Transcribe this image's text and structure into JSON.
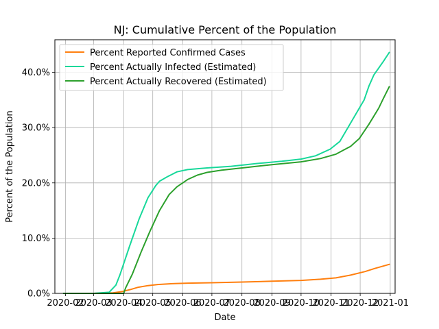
{
  "chart_data": {
    "type": "line",
    "title": "NJ: Cumulative Percent of the Population",
    "xlabel": "Date",
    "ylabel": "Percent of the Population",
    "x_axis_type": "date",
    "xlim": [
      "2020-01-21",
      "2021-01-06"
    ],
    "ylim": [
      0,
      45.9
    ],
    "x_ticks": [
      "2020-02-01",
      "2020-03-01",
      "2020-04-01",
      "2020-05-01",
      "2020-06-01",
      "2020-07-01",
      "2020-08-01",
      "2020-09-01",
      "2020-10-01",
      "2020-11-01",
      "2020-12-01",
      "2021-01-01"
    ],
    "x_tick_labels": [
      "2020-02",
      "2020-03",
      "2020-04",
      "2020-05",
      "2020-06",
      "2020-07",
      "2020-08",
      "2020-09",
      "2020-10",
      "2020-11",
      "2020-12",
      "2021-01"
    ],
    "y_ticks": [
      0,
      10,
      20,
      30,
      40
    ],
    "y_tick_labels": [
      "0.0%",
      "10.0%",
      "20.0%",
      "30.0%",
      "40.0%"
    ],
    "grid": true,
    "legend_position": "top-left",
    "series": [
      {
        "name": "Percent Reported Confirmed Cases",
        "color": "#ff7f0e",
        "points": [
          [
            "2020-01-30",
            0
          ],
          [
            "2020-03-01",
            0
          ],
          [
            "2020-03-21",
            0.1
          ],
          [
            "2020-03-31",
            0.35
          ],
          [
            "2020-04-08",
            0.7
          ],
          [
            "2020-04-16",
            1.1
          ],
          [
            "2020-04-26",
            1.4
          ],
          [
            "2020-05-06",
            1.6
          ],
          [
            "2020-05-21",
            1.75
          ],
          [
            "2020-06-06",
            1.85
          ],
          [
            "2020-07-01",
            1.92
          ],
          [
            "2020-08-01",
            2.05
          ],
          [
            "2020-09-01",
            2.2
          ],
          [
            "2020-10-01",
            2.35
          ],
          [
            "2020-10-21",
            2.55
          ],
          [
            "2020-11-06",
            2.8
          ],
          [
            "2020-11-21",
            3.3
          ],
          [
            "2020-12-06",
            3.95
          ],
          [
            "2020-12-16",
            4.5
          ],
          [
            "2020-12-26",
            5.0
          ],
          [
            "2020-12-31",
            5.25
          ]
        ]
      },
      {
        "name": "Percent Actually Infected (Estimated)",
        "color": "#17d89a",
        "points": [
          [
            "2020-01-30",
            0
          ],
          [
            "2020-03-01",
            0
          ],
          [
            "2020-03-17",
            0.2
          ],
          [
            "2020-03-24",
            1.5
          ],
          [
            "2020-03-28",
            3.3
          ],
          [
            "2020-04-07",
            8.5
          ],
          [
            "2020-04-17",
            13.5
          ],
          [
            "2020-04-26",
            17.3
          ],
          [
            "2020-05-04",
            19.5
          ],
          [
            "2020-05-08",
            20.3
          ],
          [
            "2020-05-16",
            21.1
          ],
          [
            "2020-05-26",
            22.0
          ],
          [
            "2020-06-06",
            22.4
          ],
          [
            "2020-06-26",
            22.7
          ],
          [
            "2020-07-21",
            23.0
          ],
          [
            "2020-08-16",
            23.5
          ],
          [
            "2020-09-11",
            23.9
          ],
          [
            "2020-10-01",
            24.3
          ],
          [
            "2020-10-16",
            24.9
          ],
          [
            "2020-10-31",
            26.1
          ],
          [
            "2020-11-10",
            27.5
          ],
          [
            "2020-11-20",
            30.5
          ],
          [
            "2020-11-30",
            33.5
          ],
          [
            "2020-12-05",
            35.0
          ],
          [
            "2020-12-10",
            37.5
          ],
          [
            "2020-12-15",
            39.5
          ],
          [
            "2020-12-25",
            42.0
          ],
          [
            "2020-12-31",
            43.6
          ]
        ]
      },
      {
        "name": "Percent Actually Recovered (Estimated)",
        "color": "#2ca02c",
        "points": [
          [
            "2020-01-30",
            0
          ],
          [
            "2020-04-01",
            0
          ],
          [
            "2020-04-03",
            1.0
          ],
          [
            "2020-04-10",
            3.5
          ],
          [
            "2020-04-19",
            7.5
          ],
          [
            "2020-04-28",
            11.2
          ],
          [
            "2020-05-08",
            15.0
          ],
          [
            "2020-05-18",
            17.9
          ],
          [
            "2020-05-26",
            19.3
          ],
          [
            "2020-06-06",
            20.6
          ],
          [
            "2020-06-16",
            21.4
          ],
          [
            "2020-06-26",
            21.9
          ],
          [
            "2020-07-11",
            22.3
          ],
          [
            "2020-08-06",
            22.8
          ],
          [
            "2020-09-01",
            23.3
          ],
          [
            "2020-10-01",
            23.8
          ],
          [
            "2020-10-21",
            24.4
          ],
          [
            "2020-11-06",
            25.2
          ],
          [
            "2020-11-21",
            26.6
          ],
          [
            "2020-11-30",
            28.0
          ],
          [
            "2020-12-10",
            30.6
          ],
          [
            "2020-12-20",
            33.5
          ],
          [
            "2020-12-25",
            35.3
          ],
          [
            "2020-12-31",
            37.4
          ]
        ]
      }
    ]
  }
}
